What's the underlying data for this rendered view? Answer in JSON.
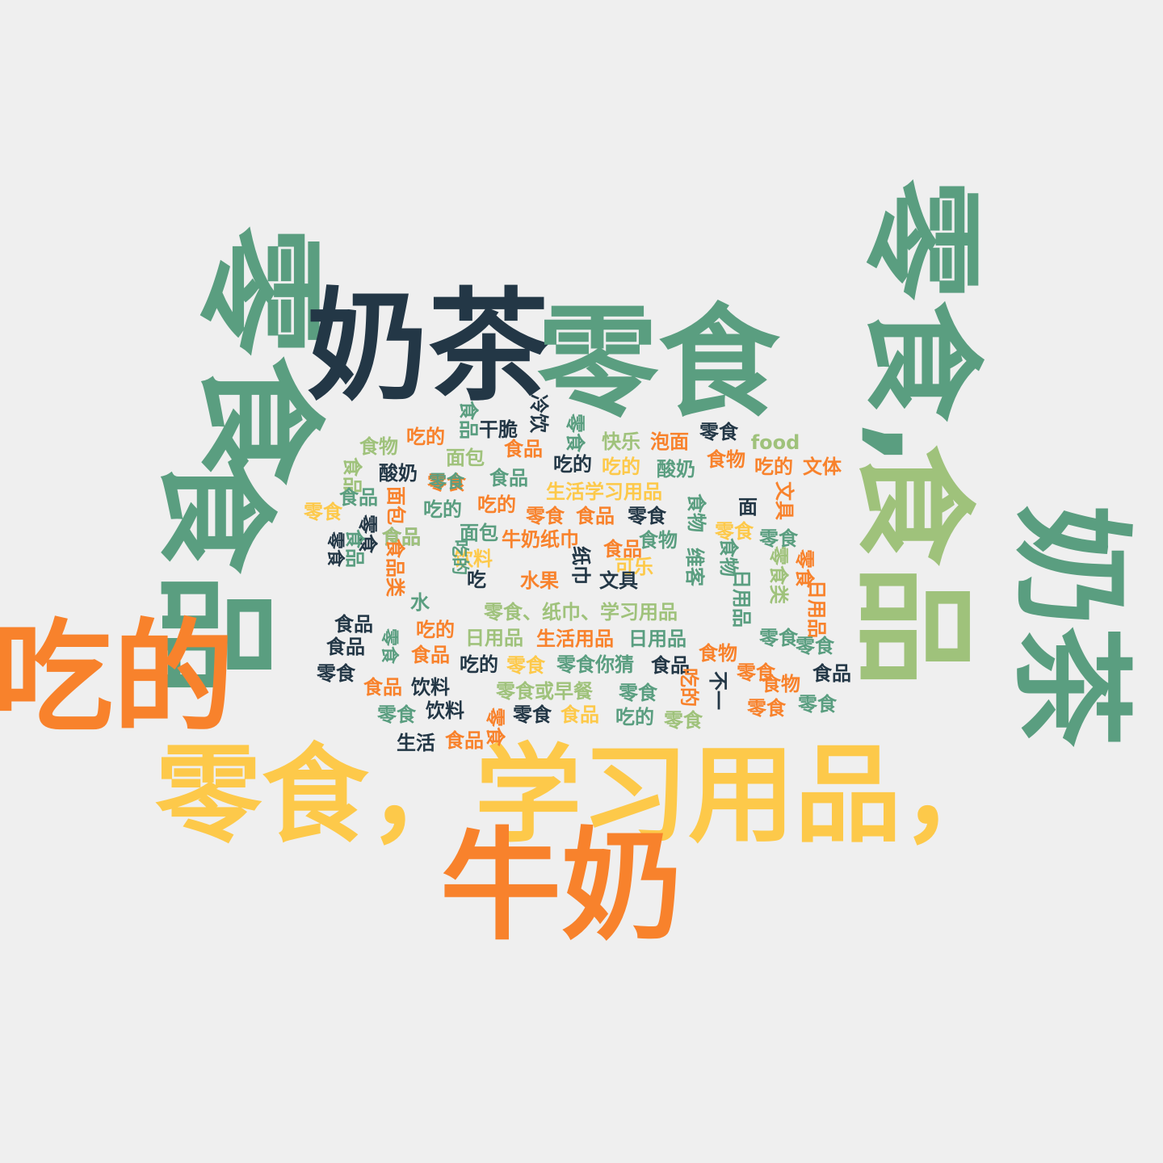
{
  "palette": {
    "green": "#5a9e80",
    "light_green": "#9fc27b",
    "navy": "#233746",
    "orange": "#f8822c",
    "yellow": "#fdc94a"
  },
  "words": [
    {
      "text": "零食",
      "color": "green"
    },
    {
      "text": "奶茶",
      "color": "navy"
    },
    {
      "text": "零食",
      "color": "green"
    },
    {
      "text": "零食,",
      "color": "green"
    },
    {
      "text": "食品",
      "color": "green"
    },
    {
      "text": "食品",
      "color": "light_green"
    },
    {
      "text": "奶茶",
      "color": "green"
    },
    {
      "text": "吃的",
      "color": "orange"
    },
    {
      "text": "零食，学习用品，",
      "color": "yellow"
    },
    {
      "text": "牛奶",
      "color": "orange"
    },
    {
      "text": "吃的",
      "color": "orange"
    },
    {
      "text": "食品",
      "color": "green"
    },
    {
      "text": "干脆",
      "color": "navy"
    },
    {
      "text": "冷饮",
      "color": "navy"
    },
    {
      "text": "零食",
      "color": "green"
    },
    {
      "text": "快乐",
      "color": "light_green"
    },
    {
      "text": "泡面",
      "color": "orange"
    },
    {
      "text": "零食",
      "color": "navy"
    },
    {
      "text": "food",
      "color": "light_green"
    },
    {
      "text": "食物",
      "color": "light_green"
    },
    {
      "text": "食品",
      "color": "orange"
    },
    {
      "text": "面包",
      "color": "light_green"
    },
    {
      "text": "吃的",
      "color": "navy"
    },
    {
      "text": "吃的",
      "color": "yellow"
    },
    {
      "text": "酸奶",
      "color": "green"
    },
    {
      "text": "食物",
      "color": "orange"
    },
    {
      "text": "吃的",
      "color": "orange"
    },
    {
      "text": "文体",
      "color": "orange"
    },
    {
      "text": "食品",
      "color": "light_green"
    },
    {
      "text": "酸奶",
      "color": "navy"
    },
    {
      "text": "零食",
      "color": "orange"
    },
    {
      "text": "食品",
      "color": "green"
    },
    {
      "text": "生活学习用品",
      "color": "yellow"
    },
    {
      "text": "食品",
      "color": "green"
    },
    {
      "text": "零食",
      "color": "green"
    },
    {
      "text": "面包",
      "color": "orange"
    },
    {
      "text": "吃的",
      "color": "green"
    },
    {
      "text": "吃的",
      "color": "orange"
    },
    {
      "text": "零食",
      "color": "orange"
    },
    {
      "text": "食品",
      "color": "orange"
    },
    {
      "text": "零食",
      "color": "navy"
    },
    {
      "text": "食物",
      "color": "green"
    },
    {
      "text": "面",
      "color": "navy"
    },
    {
      "text": "文具",
      "color": "orange"
    },
    {
      "text": "零食",
      "color": "yellow"
    },
    {
      "text": "零食",
      "color": "navy"
    },
    {
      "text": "面包",
      "color": "green"
    },
    {
      "text": "食品",
      "color": "navy"
    },
    {
      "text": "食品",
      "color": "light_green"
    },
    {
      "text": "牛奶纸巾",
      "color": "orange"
    },
    {
      "text": "食物",
      "color": "green"
    },
    {
      "text": "零食",
      "color": "yellow"
    },
    {
      "text": "零食",
      "color": "green"
    },
    {
      "text": "食品",
      "color": "green"
    },
    {
      "text": "食品",
      "color": "orange"
    },
    {
      "text": "饮料",
      "color": "yellow"
    },
    {
      "text": "食品类",
      "color": "orange"
    },
    {
      "text": "可乐",
      "color": "yellow"
    },
    {
      "text": "维客",
      "color": "green"
    },
    {
      "text": "食物",
      "color": "green"
    },
    {
      "text": "零食类",
      "color": "light_green"
    },
    {
      "text": "零食",
      "color": "orange"
    },
    {
      "text": "水果",
      "color": "orange"
    },
    {
      "text": "吃",
      "color": "navy"
    },
    {
      "text": "纸巾",
      "color": "navy"
    },
    {
      "text": "文具",
      "color": "navy"
    },
    {
      "text": "水",
      "color": "green"
    },
    {
      "text": "日用品",
      "color": "green"
    },
    {
      "text": "零食、纸巾、学习用品",
      "color": "light_green"
    },
    {
      "text": "日用品",
      "color": "orange"
    },
    {
      "text": "食品",
      "color": "navy"
    },
    {
      "text": "吃的",
      "color": "orange"
    },
    {
      "text": "日用品",
      "color": "light_green"
    },
    {
      "text": "生活用品",
      "color": "orange"
    },
    {
      "text": "日用品",
      "color": "green"
    },
    {
      "text": "零食",
      "color": "green"
    },
    {
      "text": "零食",
      "color": "green"
    },
    {
      "text": "食品",
      "color": "navy"
    },
    {
      "text": "食品",
      "color": "orange"
    },
    {
      "text": "食物",
      "color": "orange"
    },
    {
      "text": "零食",
      "color": "navy"
    },
    {
      "text": "吃的",
      "color": "navy"
    },
    {
      "text": "零食",
      "color": "yellow"
    },
    {
      "text": "零食你猜",
      "color": "green"
    },
    {
      "text": "食品",
      "color": "navy"
    },
    {
      "text": "不一",
      "color": "navy"
    },
    {
      "text": "零食",
      "color": "orange"
    },
    {
      "text": "食品",
      "color": "navy"
    },
    {
      "text": "食品",
      "color": "orange"
    },
    {
      "text": "饮料",
      "color": "navy"
    },
    {
      "text": "零食或早餐",
      "color": "light_green"
    },
    {
      "text": "零食",
      "color": "green"
    },
    {
      "text": "吃的",
      "color": "orange"
    },
    {
      "text": "食物",
      "color": "orange"
    },
    {
      "text": "零食",
      "color": "green"
    },
    {
      "text": "饮料",
      "color": "navy"
    },
    {
      "text": "零食",
      "color": "navy"
    },
    {
      "text": "食品",
      "color": "yellow"
    },
    {
      "text": "吃的",
      "color": "green"
    },
    {
      "text": "零食",
      "color": "light_green"
    },
    {
      "text": "零食",
      "color": "orange"
    },
    {
      "text": "零食",
      "color": "green"
    },
    {
      "text": "生活",
      "color": "navy"
    },
    {
      "text": "食品",
      "color": "orange"
    },
    {
      "text": "零食",
      "color": "orange"
    },
    {
      "text": "吃的",
      "color": "green"
    },
    {
      "text": "零食",
      "color": "navy"
    },
    {
      "text": "零食",
      "color": "green"
    }
  ]
}
